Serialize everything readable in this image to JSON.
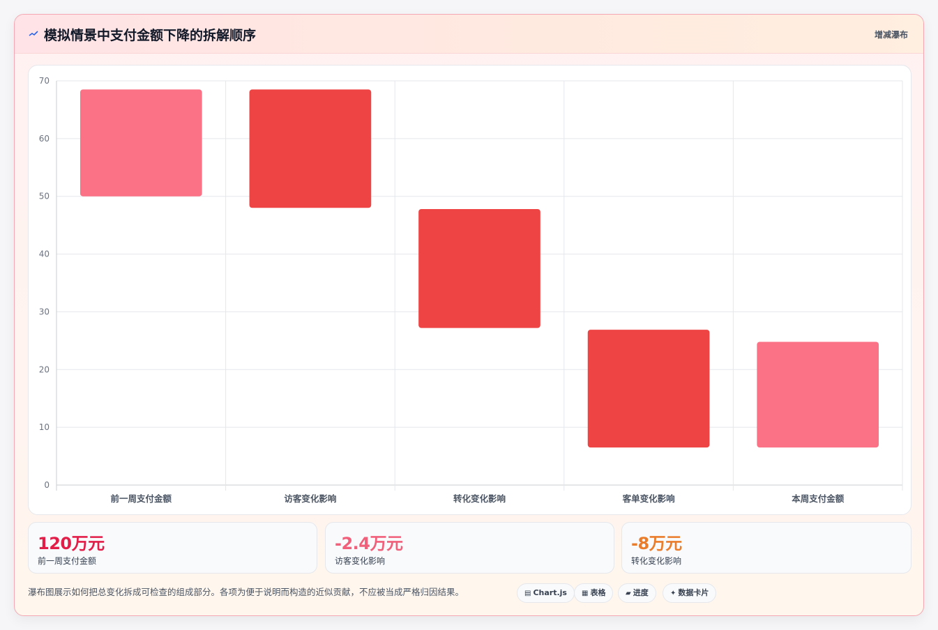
{
  "header": {
    "icon": "chart-line-icon",
    "title": "模拟情景中支付金额下降的拆解顺序",
    "mode_label": "增减瀑布"
  },
  "chart_data": {
    "type": "bar",
    "subtype": "waterfall",
    "categories": [
      "前一周支付金额",
      "访客变化影响",
      "转化变化影响",
      "客单变化影响",
      "本周支付金额"
    ],
    "ranges": [
      [
        50,
        68.5
      ],
      [
        48,
        68.5
      ],
      [
        27.2,
        47.8
      ],
      [
        6.5,
        26.9
      ],
      [
        6.5,
        24.8
      ]
    ],
    "bar_kinds": [
      "total",
      "decrease",
      "decrease",
      "decrease",
      "total"
    ],
    "ylim": [
      0,
      70
    ],
    "yticks": [
      0,
      10,
      20,
      30,
      40,
      50,
      60,
      70
    ],
    "grid": true,
    "colors": {
      "total": "#fb7185",
      "decrease": "#ef4444"
    }
  },
  "stats": [
    {
      "value": "120万元",
      "label": "前一周支付金额",
      "color": "#e11d48"
    },
    {
      "value": "-2.4万元",
      "label": "访客变化影响",
      "color": "#f0607a"
    },
    {
      "value": "-8万元",
      "label": "转化变化影响",
      "color": "#ea7d2c"
    }
  ],
  "footer_note": "瀑布图展示如何把总变化拆成可检查的组成部分。各项为便于说明而构造的近似贡献，不应被当成严格归因结果。",
  "tags": [
    {
      "icon": "chart-icon",
      "glyph": "▤",
      "label": "Chart.js"
    },
    {
      "icon": "table-icon",
      "glyph": "▦",
      "label": "表格"
    },
    {
      "icon": "progress-icon",
      "glyph": "▰",
      "label": "进度"
    },
    {
      "icon": "card-icon",
      "glyph": "✦",
      "label": "数据卡片"
    }
  ]
}
